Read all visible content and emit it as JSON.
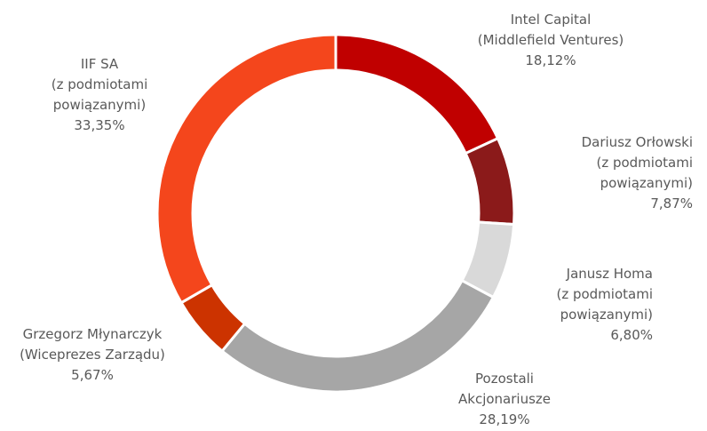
{
  "chart_data": {
    "type": "donut",
    "categories": [
      [
        "Intel Capital",
        "(Middlefield Ventures)"
      ],
      [
        "Dariusz Orłowski",
        "(z podmiotami",
        "powiązanymi)"
      ],
      [
        "Janusz Homa",
        "(z podmiotami",
        "powiązanymi)"
      ],
      [
        "Pozostali",
        "Akcjonariusze"
      ],
      [
        "Grzegorz Młynarczyk",
        "(Wiceprezes Zarządu)"
      ],
      [
        "IIF SA",
        "(z podmiotami",
        "powiązanymi)"
      ]
    ],
    "values": [
      18.12,
      7.87,
      6.8,
      28.19,
      5.67,
      33.35
    ],
    "value_labels": [
      "18,12%",
      "7,87%",
      "6,80%",
      "28,19%",
      "5,67%",
      "33,35%"
    ],
    "colors": [
      "#c00000",
      "#8b1a1a",
      "#d9d9d9",
      "#a6a6a6",
      "#cc3300",
      "#f4461c"
    ]
  }
}
